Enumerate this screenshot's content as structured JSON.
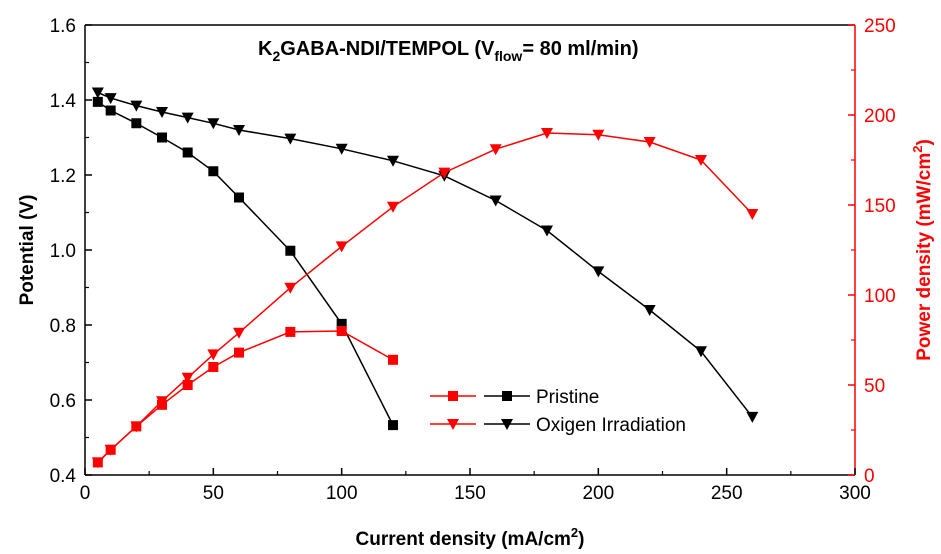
{
  "chart_data": {
    "type": "line",
    "title": {
      "main": "K",
      "sub1": "2",
      "mid": "GABA-NDI/TEMPOL (V",
      "sub2": "flow",
      "tail": "= 80 ml/min)"
    },
    "xlabel": {
      "main": "Current density (mA/cm",
      "sup": "2",
      "tail": ")"
    },
    "ylabel_left": "Potential (V)",
    "ylabel_right": {
      "main": "Power density (mW/cm",
      "sup": "2",
      "tail": ")"
    },
    "xlim": [
      0,
      300
    ],
    "ylim_left": [
      0.4,
      1.6
    ],
    "ylim_right": [
      0,
      250
    ],
    "x_ticks": [
      "0",
      "50",
      "100",
      "150",
      "200",
      "250",
      "300"
    ],
    "y_left_ticks": [
      "0.4",
      "0.6",
      "0.8",
      "1.0",
      "1.2",
      "1.4",
      "1.6"
    ],
    "y_right_ticks": [
      "0",
      "50",
      "100",
      "150",
      "200",
      "250"
    ],
    "grid": false,
    "legend_position": "bottom-right",
    "colors": {
      "potential": "#000000",
      "power": "#ff0000"
    },
    "series": [
      {
        "name": "Pristine",
        "axis": "left",
        "marker": "square",
        "color": "#000000",
        "x": [
          5,
          10,
          20,
          30,
          40,
          50,
          60,
          80,
          100,
          120
        ],
        "y": [
          1.395,
          1.372,
          1.338,
          1.3,
          1.26,
          1.21,
          1.14,
          0.998,
          0.803,
          0.533
        ]
      },
      {
        "name": "Oxigen Irradiation",
        "axis": "left",
        "marker": "triangle-down",
        "color": "#000000",
        "x": [
          5,
          10,
          20,
          30,
          40,
          50,
          60,
          80,
          100,
          120,
          140,
          160,
          180,
          200,
          220,
          240,
          260
        ],
        "y": [
          1.42,
          1.405,
          1.385,
          1.368,
          1.353,
          1.338,
          1.32,
          1.297,
          1.27,
          1.238,
          1.198,
          1.132,
          1.052,
          0.943,
          0.84,
          0.73,
          0.555
        ]
      },
      {
        "name": "Pristine",
        "axis": "right",
        "marker": "square",
        "color": "#ff0000",
        "x": [
          5,
          10,
          20,
          30,
          40,
          50,
          60,
          80,
          100,
          120
        ],
        "y": [
          7,
          14,
          27,
          39,
          50,
          60,
          68,
          79.5,
          80,
          64
        ]
      },
      {
        "name": "Oxigen Irradiation",
        "axis": "right",
        "marker": "triangle-down",
        "color": "#ff0000",
        "x": [
          5,
          10,
          20,
          30,
          40,
          50,
          60,
          80,
          100,
          120,
          140,
          160,
          180,
          200,
          220,
          240,
          260
        ],
        "y": [
          7,
          14,
          27,
          41,
          54,
          67,
          79,
          104,
          127,
          149,
          168,
          181,
          190,
          189,
          185,
          175,
          145
        ]
      }
    ],
    "legend": [
      {
        "label": "Pristine",
        "marker": "square"
      },
      {
        "label": "Oxigen Irradiation",
        "marker": "triangle-down"
      }
    ]
  }
}
